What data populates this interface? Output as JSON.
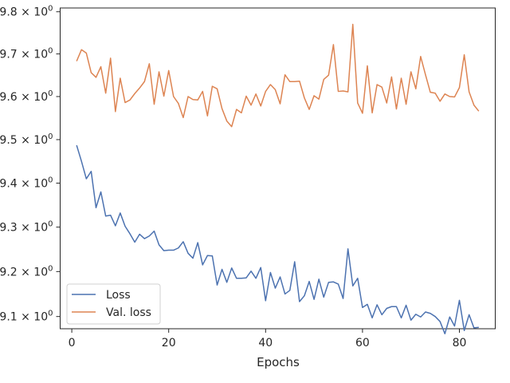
{
  "chart_data": {
    "type": "line",
    "title": "",
    "xlabel": "Epochs",
    "ylabel": "",
    "xlim": [
      -2.4,
      87.4
    ],
    "ylim": [
      9.073,
      9.809
    ],
    "yscale": "log",
    "grid": false,
    "legend_position": "lower-left",
    "xticks": [
      0,
      20,
      40,
      60,
      80
    ],
    "xtick_labels": [
      "0",
      "20",
      "40",
      "60",
      "80"
    ],
    "yticks": [
      9.1,
      9.2,
      9.3,
      9.4,
      9.5,
      9.6,
      9.7,
      9.8
    ],
    "ytick_labels": [
      "9.1",
      "9.2",
      "9.3",
      "9.4",
      "9.5",
      "9.6",
      "9.7",
      "9.8"
    ],
    "ytick_suffix": "0",
    "x": [
      1,
      2,
      3,
      4,
      5,
      6,
      7,
      8,
      9,
      10,
      11,
      12,
      13,
      14,
      15,
      16,
      17,
      18,
      19,
      20,
      21,
      22,
      23,
      24,
      25,
      26,
      27,
      28,
      29,
      30,
      31,
      32,
      33,
      34,
      35,
      36,
      37,
      38,
      39,
      40,
      41,
      42,
      43,
      44,
      45,
      46,
      47,
      48,
      49,
      50,
      51,
      52,
      53,
      54,
      55,
      56,
      57,
      58,
      59,
      60,
      61,
      62,
      63,
      64,
      65,
      66,
      67,
      68,
      69,
      70,
      71,
      72,
      73,
      74,
      75,
      76,
      77,
      78,
      79,
      80,
      81,
      82,
      83,
      84
    ],
    "series": [
      {
        "name": "Loss",
        "color": "#4c72b0",
        "values": [
          9.487,
          9.45,
          9.41,
          9.427,
          9.344,
          9.38,
          9.325,
          9.327,
          9.303,
          9.332,
          9.302,
          9.285,
          9.266,
          9.284,
          9.274,
          9.28,
          9.291,
          9.26,
          9.247,
          9.248,
          9.248,
          9.253,
          9.267,
          9.241,
          9.23,
          9.265,
          9.215,
          9.236,
          9.235,
          9.17,
          9.205,
          9.176,
          9.208,
          9.185,
          9.185,
          9.186,
          9.201,
          9.185,
          9.209,
          9.135,
          9.198,
          9.163,
          9.188,
          9.15,
          9.158,
          9.222,
          9.133,
          9.146,
          9.178,
          9.138,
          9.183,
          9.143,
          9.176,
          9.177,
          9.172,
          9.14,
          9.251,
          9.168,
          9.185,
          9.12,
          9.127,
          9.097,
          9.126,
          9.104,
          9.118,
          9.122,
          9.122,
          9.097,
          9.125,
          9.092,
          9.105,
          9.099,
          9.11,
          9.107,
          9.1,
          9.089,
          9.062,
          9.099,
          9.079,
          9.136,
          9.069,
          9.104,
          9.075,
          9.076
        ]
      },
      {
        "name": "Val. loss",
        "color": "#dd8452",
        "values": [
          9.683,
          9.71,
          9.702,
          9.656,
          9.645,
          9.67,
          9.608,
          9.69,
          9.565,
          9.643,
          9.586,
          9.592,
          9.607,
          9.62,
          9.635,
          9.677,
          9.582,
          9.658,
          9.601,
          9.661,
          9.6,
          9.584,
          9.551,
          9.6,
          9.593,
          9.592,
          9.612,
          9.555,
          9.624,
          9.618,
          9.572,
          9.543,
          9.53,
          9.57,
          9.562,
          9.601,
          9.58,
          9.606,
          9.578,
          9.612,
          9.628,
          9.616,
          9.583,
          9.651,
          9.635,
          9.635,
          9.636,
          9.597,
          9.57,
          9.602,
          9.594,
          9.64,
          9.65,
          9.722,
          9.612,
          9.613,
          9.611,
          9.77,
          9.585,
          9.561,
          9.672,
          9.562,
          9.628,
          9.622,
          9.585,
          9.646,
          9.571,
          9.643,
          9.582,
          9.658,
          9.618,
          9.694,
          9.651,
          9.61,
          9.608,
          9.589,
          9.606,
          9.6,
          9.599,
          9.621,
          9.698,
          9.611,
          9.58,
          9.566
        ]
      }
    ]
  }
}
